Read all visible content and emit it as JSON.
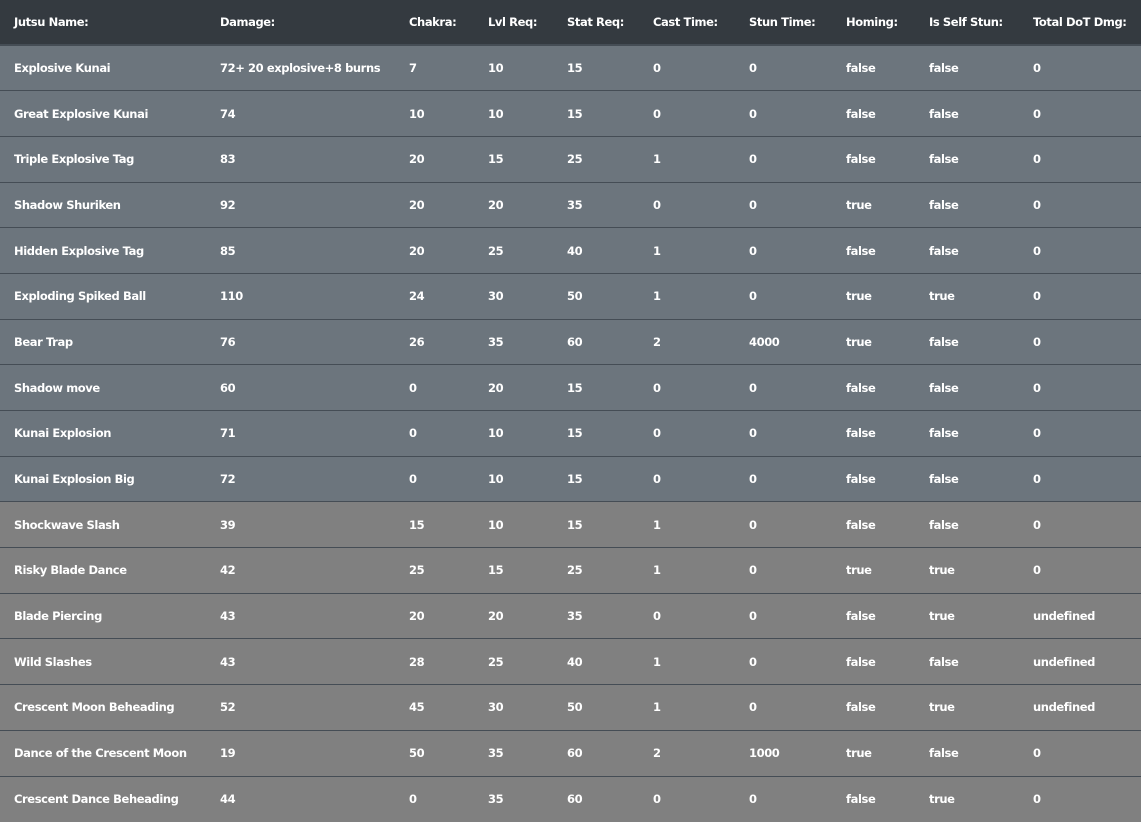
{
  "columns": [
    "Jutsu Name:",
    "Damage:",
    "Chakra:",
    "Lvl Req:",
    "Stat Req:",
    "Cast Time:",
    "Stun Time:",
    "Homing:",
    "Is Self Stun:",
    "Total DoT Dmg:"
  ],
  "colors": {
    "header": "#343a40",
    "row_primary": "#6c757d",
    "row_secondary": "#808080",
    "border": "#454d55"
  },
  "rows": [
    {
      "style": "primary",
      "cells": [
        "Explosive Kunai",
        "72+ 20 explosive+8 burns",
        "7",
        "10",
        "15",
        "0",
        "0",
        "false",
        "false",
        "0"
      ]
    },
    {
      "style": "primary",
      "cells": [
        "Great Explosive Kunai",
        "74",
        "10",
        "10",
        "15",
        "0",
        "0",
        "false",
        "false",
        "0"
      ]
    },
    {
      "style": "primary",
      "cells": [
        "Triple Explosive Tag",
        "83",
        "20",
        "15",
        "25",
        "1",
        "0",
        "false",
        "false",
        "0"
      ]
    },
    {
      "style": "primary",
      "cells": [
        "Shadow Shuriken",
        "92",
        "20",
        "20",
        "35",
        "0",
        "0",
        "true",
        "false",
        "0"
      ]
    },
    {
      "style": "primary",
      "cells": [
        "Hidden Explosive Tag",
        "85",
        "20",
        "25",
        "40",
        "1",
        "0",
        "false",
        "false",
        "0"
      ]
    },
    {
      "style": "primary",
      "cells": [
        "Exploding Spiked Ball",
        "110",
        "24",
        "30",
        "50",
        "1",
        "0",
        "true",
        "true",
        "0"
      ]
    },
    {
      "style": "primary",
      "cells": [
        "Bear Trap",
        "76",
        "26",
        "35",
        "60",
        "2",
        "4000",
        "true",
        "false",
        "0"
      ]
    },
    {
      "style": "primary",
      "cells": [
        "Shadow move",
        "60",
        "0",
        "20",
        "15",
        "0",
        "0",
        "false",
        "false",
        "0"
      ]
    },
    {
      "style": "primary",
      "cells": [
        "Kunai Explosion",
        "71",
        "0",
        "10",
        "15",
        "0",
        "0",
        "false",
        "false",
        "0"
      ]
    },
    {
      "style": "primary",
      "cells": [
        "Kunai Explosion Big",
        "72",
        "0",
        "10",
        "15",
        "0",
        "0",
        "false",
        "false",
        "0"
      ]
    },
    {
      "style": "secondary",
      "cells": [
        "Shockwave Slash",
        "39",
        "15",
        "10",
        "15",
        "1",
        "0",
        "false",
        "false",
        "0"
      ]
    },
    {
      "style": "secondary",
      "cells": [
        "Risky Blade Dance",
        "42",
        "25",
        "15",
        "25",
        "1",
        "0",
        "true",
        "true",
        "0"
      ]
    },
    {
      "style": "secondary",
      "cells": [
        "Blade Piercing",
        "43",
        "20",
        "20",
        "35",
        "0",
        "0",
        "false",
        "true",
        "undefined"
      ]
    },
    {
      "style": "secondary",
      "cells": [
        "Wild Slashes",
        "43",
        "28",
        "25",
        "40",
        "1",
        "0",
        "false",
        "false",
        "undefined"
      ]
    },
    {
      "style": "secondary",
      "cells": [
        "Crescent Moon Beheading",
        "52",
        "45",
        "30",
        "50",
        "1",
        "0",
        "false",
        "true",
        "undefined"
      ]
    },
    {
      "style": "secondary",
      "cells": [
        "Dance of the Crescent Moon",
        "19",
        "50",
        "35",
        "60",
        "2",
        "1000",
        "true",
        "false",
        "0"
      ]
    },
    {
      "style": "secondary",
      "cells": [
        "Crescent Dance Beheading",
        "44",
        "0",
        "35",
        "60",
        "0",
        "0",
        "false",
        "true",
        "0"
      ]
    }
  ]
}
